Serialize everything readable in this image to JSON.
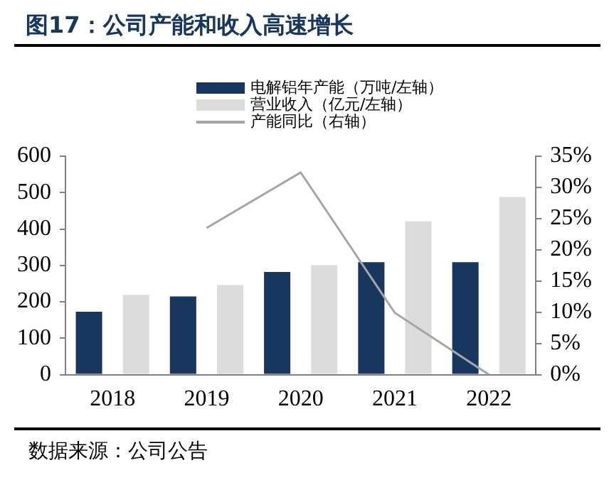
{
  "chart_data": {
    "type": "bar",
    "title": "图17：公司产能和收入高速增长",
    "categories": [
      "2018",
      "2019",
      "2020",
      "2021",
      "2022"
    ],
    "series": [
      {
        "name": "电解铝年产能（万吨/左轴）",
        "color": "#17375e",
        "values": [
          173,
          215,
          282,
          309,
          309
        ]
      },
      {
        "name": "营业收入（亿元/左轴）",
        "color": "#dcdcdc",
        "values": [
          219,
          246,
          301,
          421,
          488
        ]
      },
      {
        "name": "产能同比（右轴）",
        "type": "line",
        "axis": "y2",
        "color": "#a6a6a6",
        "values": [
          null,
          23.5,
          32.4,
          9.9,
          0
        ]
      }
    ],
    "ylim": [
      0,
      600
    ],
    "yticks": [
      0,
      100,
      200,
      300,
      400,
      500,
      600
    ],
    "y2lim": [
      0,
      35
    ],
    "y2ticks": [
      {
        "value": 0,
        "label": "0%"
      },
      {
        "value": 5,
        "label": "5%"
      },
      {
        "value": 10,
        "label": "10%"
      },
      {
        "value": 15,
        "label": "15%"
      },
      {
        "value": 20,
        "label": "20%"
      },
      {
        "value": 25,
        "label": "25%"
      },
      {
        "value": 30,
        "label": "30%"
      },
      {
        "value": 35,
        "label": "35%"
      }
    ],
    "grid": false,
    "legend": "top",
    "annotations": [
      "数据来源：公司公告"
    ]
  }
}
